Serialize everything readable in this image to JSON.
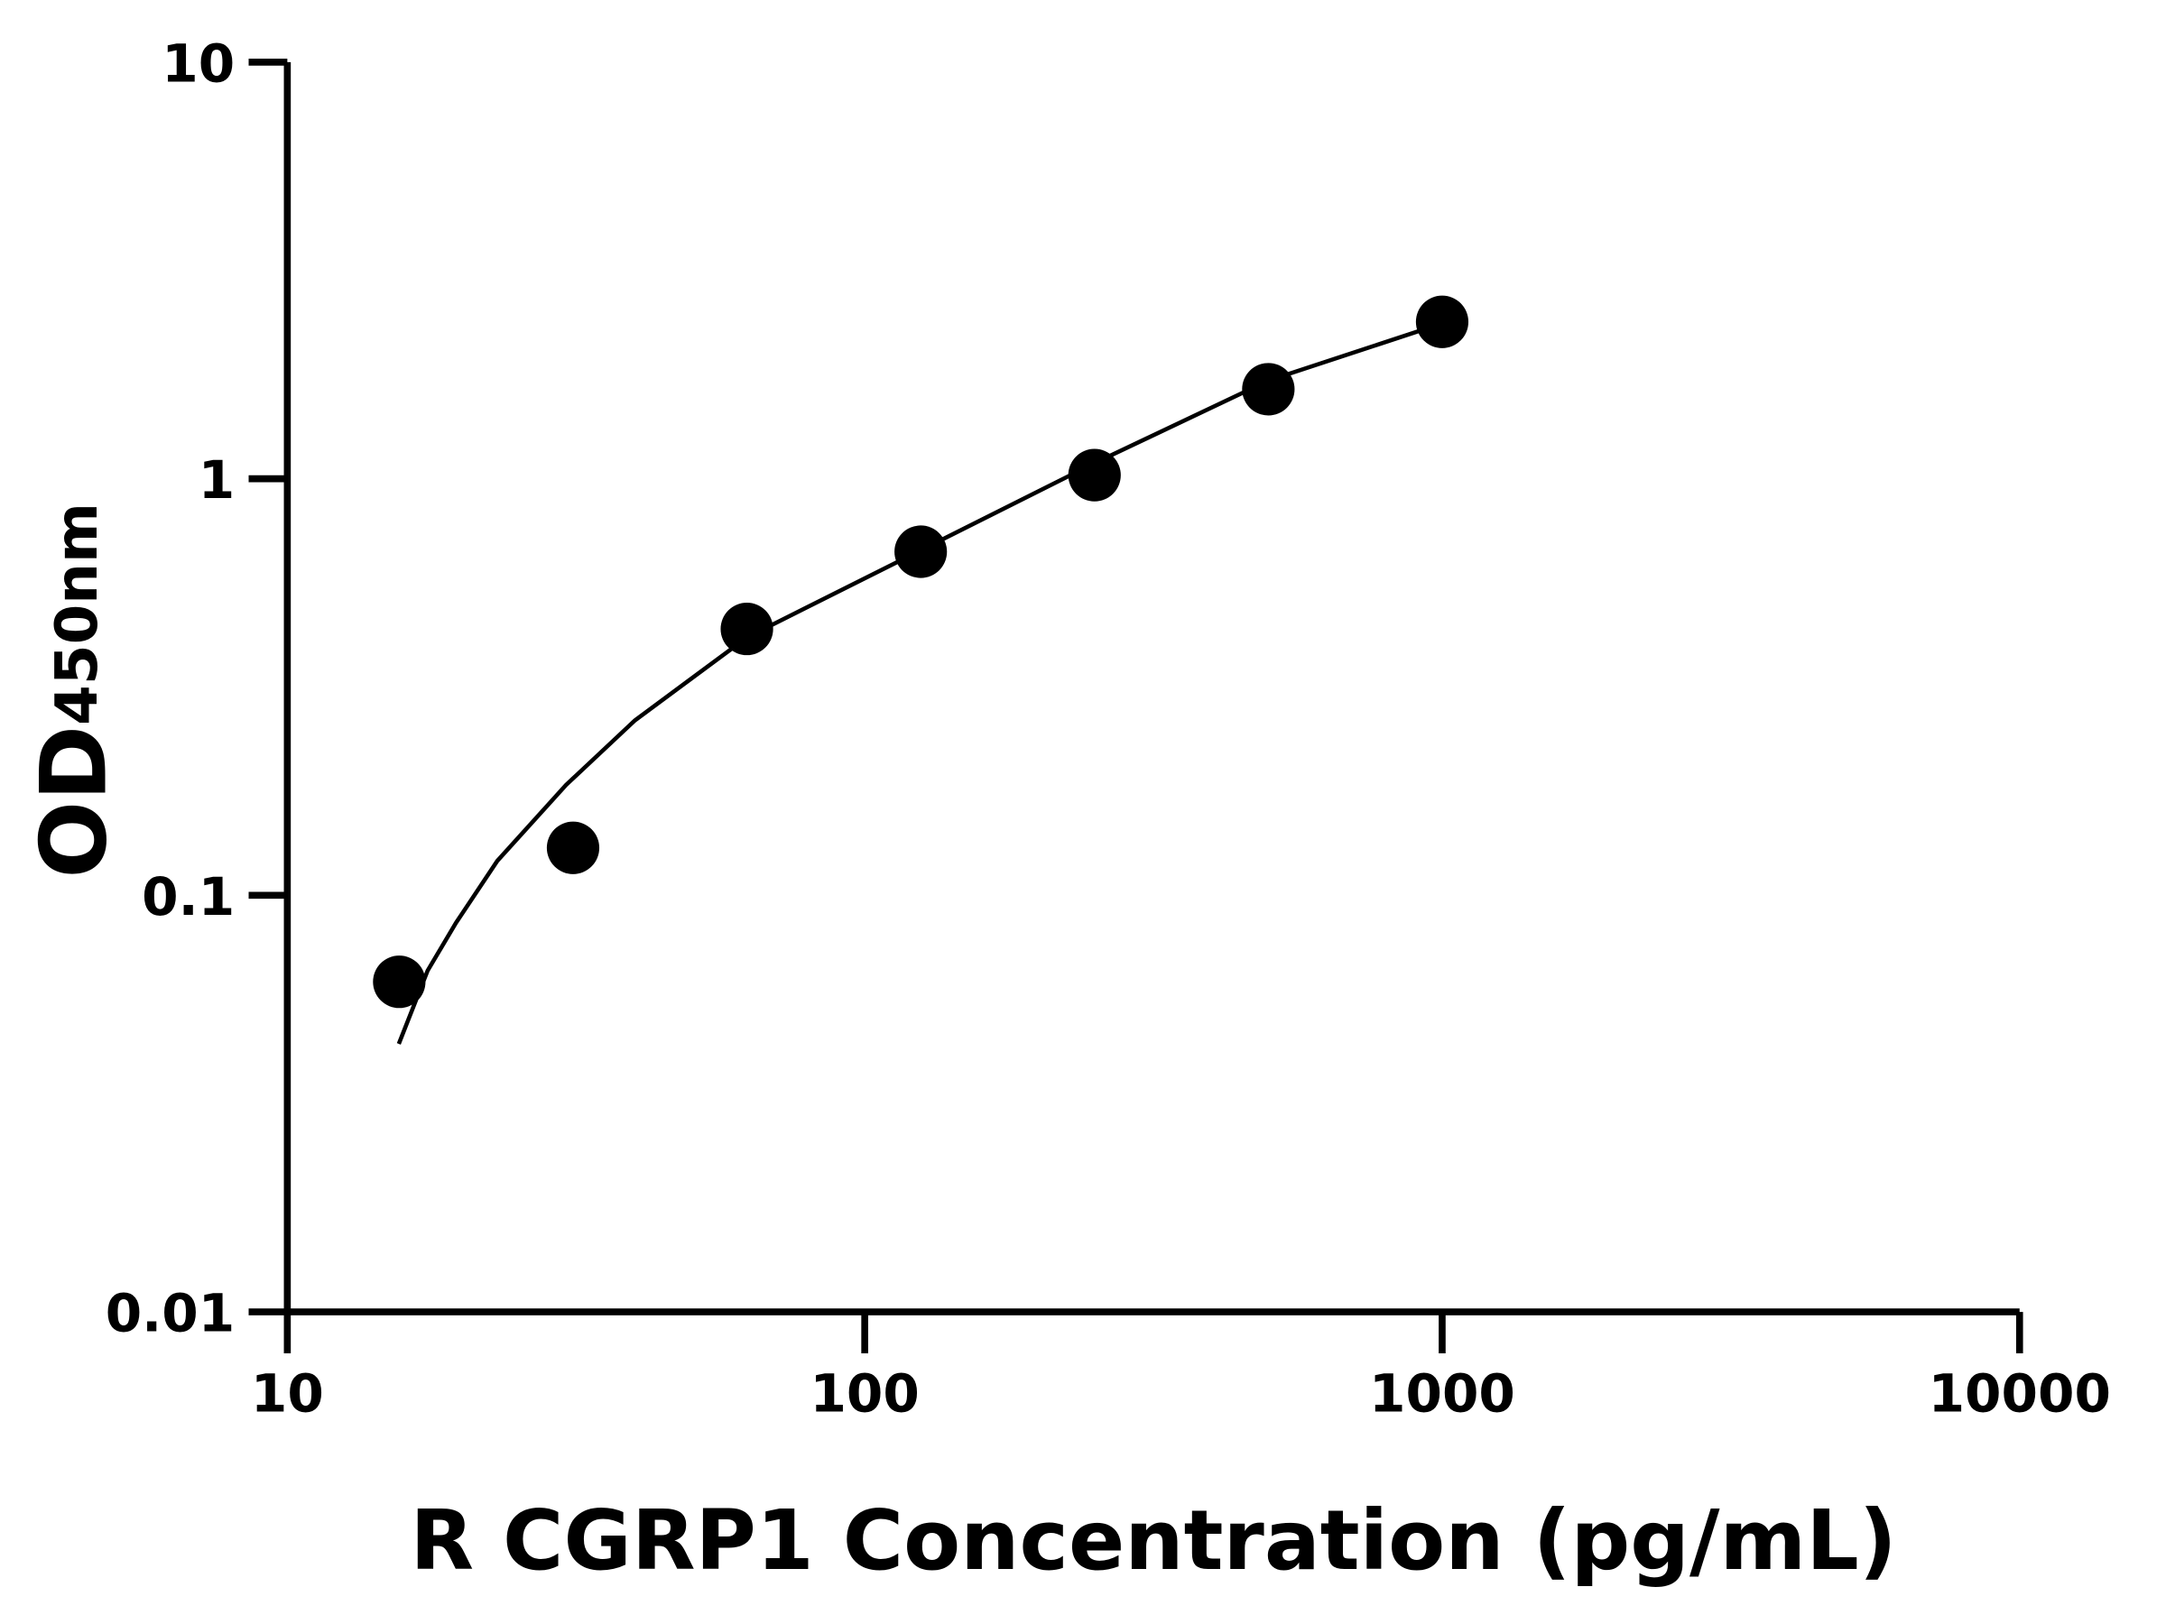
{
  "chart_data": {
    "type": "scatter",
    "title": "",
    "xlabel": "R CGRP1 Concentration (pg/mL)",
    "ylabel": "OD",
    "ylabel_subscript": "450nm",
    "xscale": "log",
    "yscale": "log",
    "xlim": [
      10,
      10000
    ],
    "ylim": [
      0.01,
      10
    ],
    "xticks": [
      "10",
      "100",
      "1000",
      "10000"
    ],
    "yticks": [
      "0.01",
      "0.1",
      "1",
      "10"
    ],
    "grid": false,
    "legend": "none",
    "series": [
      {
        "type": "scatter",
        "x": [
          15.625,
          31.25,
          62.5,
          125,
          250,
          500,
          1000
        ],
        "y": [
          0.062,
          0.13,
          0.436,
          0.668,
          1.02,
          1.64,
          2.38
        ],
        "color": "#000000"
      },
      {
        "type": "line",
        "x": [
          15.6,
          17.5,
          19.6,
          23.1,
          30.4,
          40,
          62.5,
          125,
          250,
          500,
          928
        ],
        "y": [
          0.044,
          0.066,
          0.086,
          0.121,
          0.184,
          0.263,
          0.416,
          0.673,
          1.09,
          1.72,
          2.28
        ],
        "color": "#000000"
      }
    ]
  }
}
